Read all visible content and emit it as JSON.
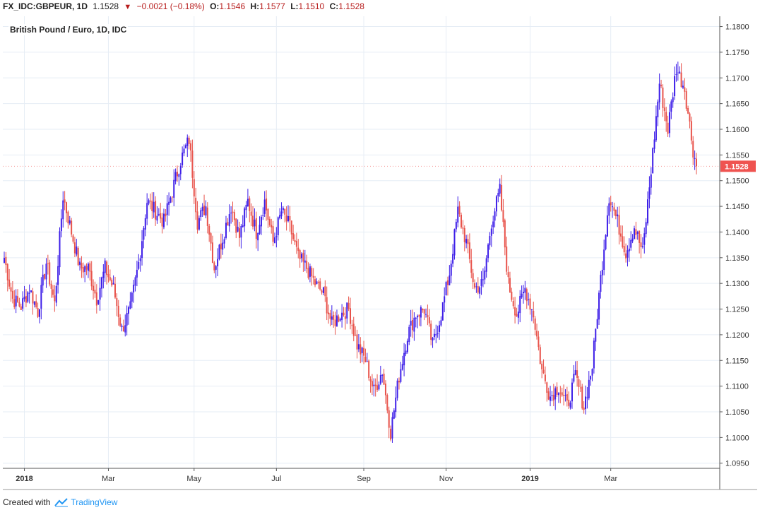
{
  "header": {
    "symbol": "FX_IDC:GBPEUR, 1D",
    "last": "1.1528",
    "change": "−0.0021 (−0.18%)",
    "open_label": "O:",
    "open": "1.1546",
    "high_label": "H:",
    "high": "1.1577",
    "low_label": "L:",
    "low": "1.1510",
    "close_label": "C:",
    "close": "1.1528"
  },
  "subtitle": "British Pound / Euro, 1D, IDC",
  "footer": {
    "prefix": "Created with",
    "brand": "TradingView"
  },
  "colors": {
    "up": "#3d1ee8",
    "down": "#e8534b",
    "grid": "#e6edf5",
    "axis": "#555555",
    "last_label_bg": "#ef5350"
  },
  "chart_data": {
    "type": "candlestick",
    "title": "British Pound / Euro, 1D, IDC",
    "ylim": [
      1.094,
      1.182
    ],
    "y_ticks": [
      1.095,
      1.1,
      1.105,
      1.11,
      1.115,
      1.12,
      1.125,
      1.13,
      1.135,
      1.14,
      1.145,
      1.15,
      1.155,
      1.16,
      1.165,
      1.17,
      1.175,
      1.18
    ],
    "x_ticks": [
      "2018",
      "Mar",
      "May",
      "Jul",
      "Sep",
      "Nov",
      "2019",
      "Mar"
    ],
    "last_price": "1.1528",
    "close_path": [
      [
        0,
        1.135
      ],
      [
        5,
        1.127
      ],
      [
        10,
        1.1255
      ],
      [
        15,
        1.129
      ],
      [
        20,
        1.1245
      ],
      [
        25,
        1.134
      ],
      [
        30,
        1.126
      ],
      [
        35,
        1.147
      ],
      [
        40,
        1.14
      ],
      [
        45,
        1.133
      ],
      [
        50,
        1.133
      ],
      [
        55,
        1.127
      ],
      [
        60,
        1.133
      ],
      [
        65,
        1.129
      ],
      [
        70,
        1.121
      ],
      [
        75,
        1.125
      ],
      [
        80,
        1.134
      ],
      [
        85,
        1.146
      ],
      [
        90,
        1.144
      ],
      [
        95,
        1.142
      ],
      [
        100,
        1.148
      ],
      [
        105,
        1.154
      ],
      [
        110,
        1.158
      ],
      [
        115,
        1.142
      ],
      [
        120,
        1.145
      ],
      [
        125,
        1.133
      ],
      [
        130,
        1.139
      ],
      [
        135,
        1.145
      ],
      [
        140,
        1.139
      ],
      [
        145,
        1.146
      ],
      [
        150,
        1.14
      ],
      [
        155,
        1.146
      ],
      [
        160,
        1.138
      ],
      [
        165,
        1.144
      ],
      [
        170,
        1.141
      ],
      [
        175,
        1.135
      ],
      [
        180,
        1.133
      ],
      [
        185,
        1.13
      ],
      [
        190,
        1.128
      ],
      [
        195,
        1.122
      ],
      [
        200,
        1.124
      ],
      [
        205,
        1.125
      ],
      [
        210,
        1.118
      ],
      [
        215,
        1.115
      ],
      [
        220,
        1.109
      ],
      [
        225,
        1.113
      ],
      [
        230,
        1.101
      ],
      [
        235,
        1.112
      ],
      [
        240,
        1.12
      ],
      [
        245,
        1.124
      ],
      [
        250,
        1.125
      ],
      [
        255,
        1.118
      ],
      [
        260,
        1.124
      ],
      [
        265,
        1.132
      ],
      [
        270,
        1.144
      ],
      [
        275,
        1.138
      ],
      [
        280,
        1.129
      ],
      [
        285,
        1.13
      ],
      [
        290,
        1.142
      ],
      [
        295,
        1.148
      ],
      [
        300,
        1.13
      ],
      [
        305,
        1.124
      ],
      [
        310,
        1.129
      ],
      [
        315,
        1.124
      ],
      [
        320,
        1.113
      ],
      [
        325,
        1.108
      ],
      [
        330,
        1.11
      ],
      [
        335,
        1.106
      ],
      [
        340,
        1.112
      ],
      [
        345,
        1.106
      ],
      [
        350,
        1.114
      ],
      [
        355,
        1.131
      ],
      [
        360,
        1.147
      ],
      [
        365,
        1.142
      ],
      [
        370,
        1.136
      ],
      [
        375,
        1.141
      ],
      [
        380,
        1.136
      ],
      [
        385,
        1.152
      ],
      [
        390,
        1.169
      ],
      [
        395,
        1.16
      ],
      [
        400,
        1.172
      ],
      [
        405,
        1.168
      ],
      [
        410,
        1.156
      ],
      [
        412,
        1.1528
      ]
    ]
  }
}
